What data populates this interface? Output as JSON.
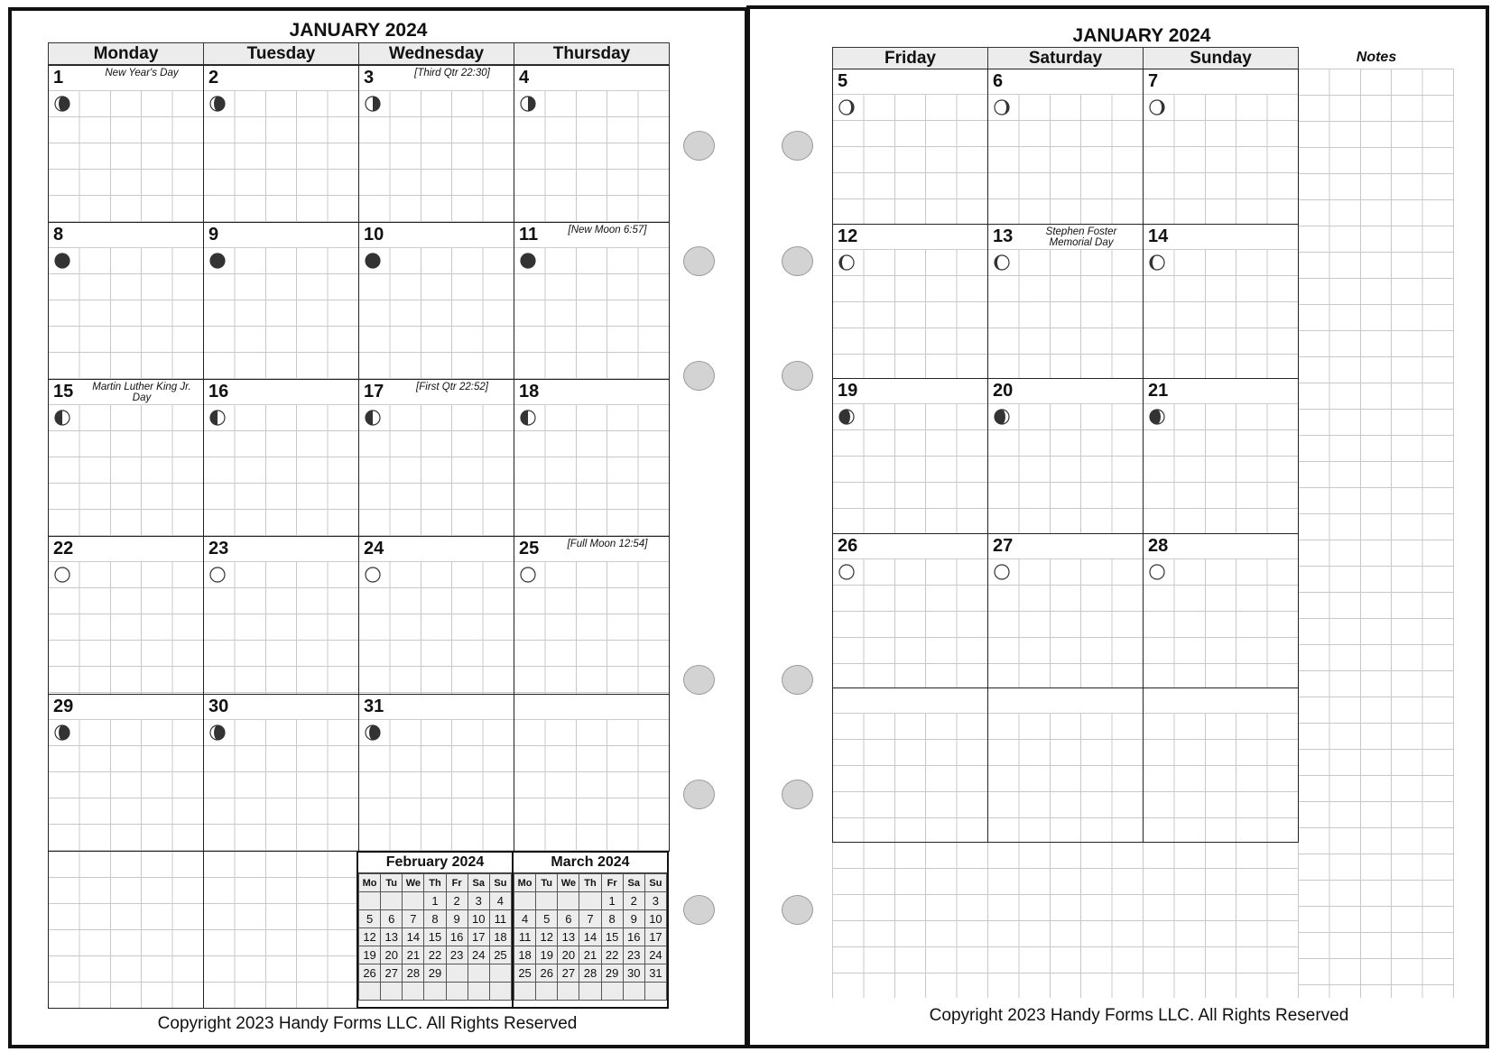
{
  "left_page": {
    "title": "JANUARY 2024",
    "weekdays": [
      "Monday",
      "Tuesday",
      "Wednesday",
      "Thursday"
    ],
    "weeks": [
      [
        {
          "day": "1",
          "note": "New Year's Day",
          "moon": "waning-gibbous"
        },
        {
          "day": "2",
          "note": "",
          "moon": "waning-gibbous"
        },
        {
          "day": "3",
          "note": "[Third Qtr 22:30]",
          "moon": "third-quarter"
        },
        {
          "day": "4",
          "note": "",
          "moon": "third-quarter"
        }
      ],
      [
        {
          "day": "8",
          "note": "",
          "moon": "new-moon"
        },
        {
          "day": "9",
          "note": "",
          "moon": "new-moon"
        },
        {
          "day": "10",
          "note": "",
          "moon": "new-moon"
        },
        {
          "day": "11",
          "note": "[New Moon 6:57]",
          "moon": "new-moon"
        }
      ],
      [
        {
          "day": "15",
          "note": "Martin Luther King Jr. Day",
          "moon": "first-quarter"
        },
        {
          "day": "16",
          "note": "",
          "moon": "first-quarter"
        },
        {
          "day": "17",
          "note": "[First Qtr 22:52]",
          "moon": "first-quarter"
        },
        {
          "day": "18",
          "note": "",
          "moon": "first-quarter"
        }
      ],
      [
        {
          "day": "22",
          "note": "",
          "moon": "full-moon"
        },
        {
          "day": "23",
          "note": "",
          "moon": "full-moon"
        },
        {
          "day": "24",
          "note": "",
          "moon": "full-moon"
        },
        {
          "day": "25",
          "note": "[Full Moon 12:54]",
          "moon": "full-moon"
        }
      ],
      [
        {
          "day": "29",
          "note": "",
          "moon": "waning-gibbous"
        },
        {
          "day": "30",
          "note": "",
          "moon": "waning-gibbous"
        },
        {
          "day": "31",
          "note": "",
          "moon": "waning-gibbous"
        },
        {
          "day": "",
          "note": "",
          "moon": ""
        }
      ]
    ],
    "mini_calendars": [
      {
        "title": "February 2024",
        "headers": [
          "Mo",
          "Tu",
          "We",
          "Th",
          "Fr",
          "Sa",
          "Su"
        ],
        "rows": [
          [
            "",
            "",
            "",
            "1",
            "2",
            "3",
            "4"
          ],
          [
            "5",
            "6",
            "7",
            "8",
            "9",
            "10",
            "11"
          ],
          [
            "12",
            "13",
            "14",
            "15",
            "16",
            "17",
            "18"
          ],
          [
            "19",
            "20",
            "21",
            "22",
            "23",
            "24",
            "25"
          ],
          [
            "26",
            "27",
            "28",
            "29",
            "",
            "",
            ""
          ],
          [
            "",
            "",
            "",
            "",
            "",
            "",
            ""
          ]
        ]
      },
      {
        "title": "March 2024",
        "headers": [
          "Mo",
          "Tu",
          "We",
          "Th",
          "Fr",
          "Sa",
          "Su"
        ],
        "rows": [
          [
            "",
            "",
            "",
            "",
            "1",
            "2",
            "3"
          ],
          [
            "4",
            "5",
            "6",
            "7",
            "8",
            "9",
            "10"
          ],
          [
            "11",
            "12",
            "13",
            "14",
            "15",
            "16",
            "17"
          ],
          [
            "18",
            "19",
            "20",
            "21",
            "22",
            "23",
            "24"
          ],
          [
            "25",
            "26",
            "27",
            "28",
            "29",
            "30",
            "31"
          ],
          [
            "",
            "",
            "",
            "",
            "",
            "",
            ""
          ]
        ]
      }
    ],
    "copyright": "Copyright 2023 Handy Forms LLC. All Rights Reserved"
  },
  "right_page": {
    "title": "JANUARY 2024",
    "weekdays": [
      "Friday",
      "Saturday",
      "Sunday"
    ],
    "notes_label": "Notes",
    "weeks": [
      [
        {
          "day": "5",
          "note": "",
          "moon": "waning-crescent"
        },
        {
          "day": "6",
          "note": "",
          "moon": "waning-crescent"
        },
        {
          "day": "7",
          "note": "",
          "moon": "waning-crescent"
        }
      ],
      [
        {
          "day": "12",
          "note": "",
          "moon": "waxing-crescent"
        },
        {
          "day": "13",
          "note": "Stephen Foster Memorial Day",
          "moon": "waxing-crescent"
        },
        {
          "day": "14",
          "note": "",
          "moon": "waxing-crescent"
        }
      ],
      [
        {
          "day": "19",
          "note": "",
          "moon": "waxing-gibbous"
        },
        {
          "day": "20",
          "note": "",
          "moon": "waxing-gibbous"
        },
        {
          "day": "21",
          "note": "",
          "moon": "waxing-gibbous"
        }
      ],
      [
        {
          "day": "26",
          "note": "",
          "moon": "full-moon"
        },
        {
          "day": "27",
          "note": "",
          "moon": "full-moon"
        },
        {
          "day": "28",
          "note": "",
          "moon": "full-moon"
        }
      ],
      [
        {
          "day": "",
          "note": "",
          "moon": ""
        },
        {
          "day": "",
          "note": "",
          "moon": ""
        },
        {
          "day": "",
          "note": "",
          "moon": ""
        }
      ]
    ],
    "copyright": "Copyright 2023 Handy Forms LLC. All Rights Reserved"
  },
  "colors": {
    "header_bg": "#ececec",
    "grid_line": "#c8c8c8",
    "moon_dark": "#333333",
    "hole": "#d3d3d3"
  }
}
